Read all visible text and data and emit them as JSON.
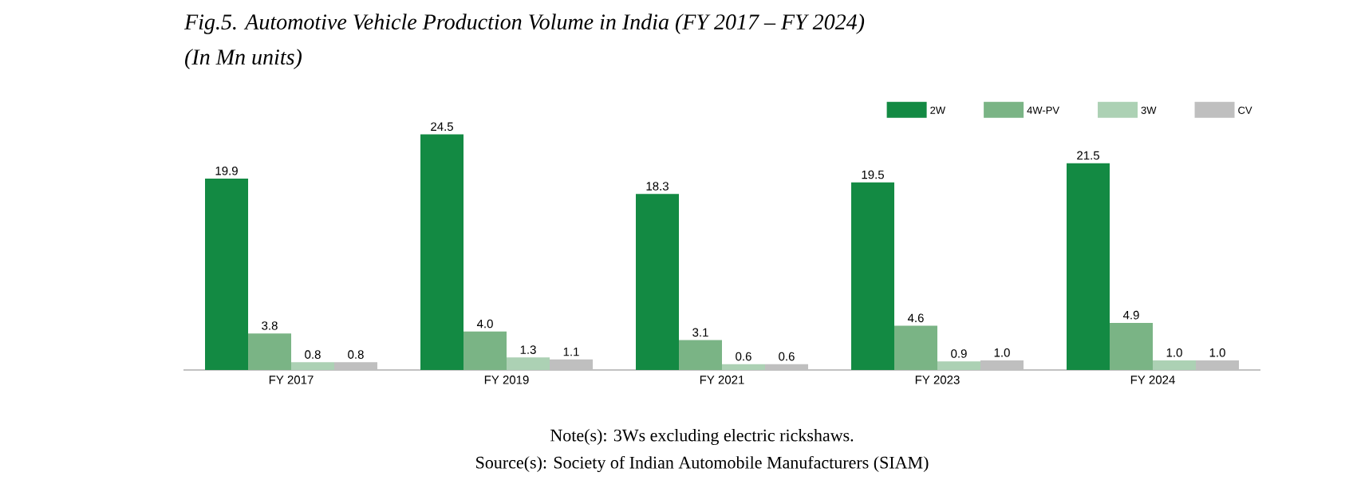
{
  "chart_data": {
    "type": "bar",
    "title": "Fig.5. Automotive Vehicle Production Volume in India (FY 2017 – FY 2024)",
    "subtitle": "(In Mn units)",
    "categories": [
      "FY 2017",
      "FY 2019",
      "FY 2021",
      "FY 2023",
      "FY 2024"
    ],
    "series": [
      {
        "name": "2W",
        "color": "#138a43",
        "values": [
          19.9,
          24.5,
          18.3,
          19.5,
          21.5
        ],
        "value_labels": [
          "19.9",
          "24.5",
          "18.3",
          "19.5",
          "21.5"
        ]
      },
      {
        "name": "4W-PV",
        "color": "#7ab485",
        "values": [
          3.8,
          4.0,
          3.1,
          4.6,
          4.9
        ],
        "value_labels": [
          "3.8",
          "4.0",
          "3.1",
          "4.6",
          "4.9"
        ]
      },
      {
        "name": "3W",
        "color": "#acd1b4",
        "values": [
          0.8,
          1.3,
          0.6,
          0.9,
          1.0
        ],
        "value_labels": [
          "0.8",
          "1.3",
          "0.6",
          "0.9",
          "1.0"
        ]
      },
      {
        "name": "CV",
        "color": "#bfbfbf",
        "values": [
          0.8,
          1.1,
          0.6,
          1.0,
          1.0
        ],
        "value_labels": [
          "0.8",
          "1.1",
          "0.6",
          "1.0",
          "1.0"
        ]
      }
    ],
    "legend": "top right",
    "annotations": [
      "Note(s): 3Ws excluding electric rickshaws.",
      "Source(s): Society of Indian Automobile Manufacturers (SIAM)"
    ]
  }
}
